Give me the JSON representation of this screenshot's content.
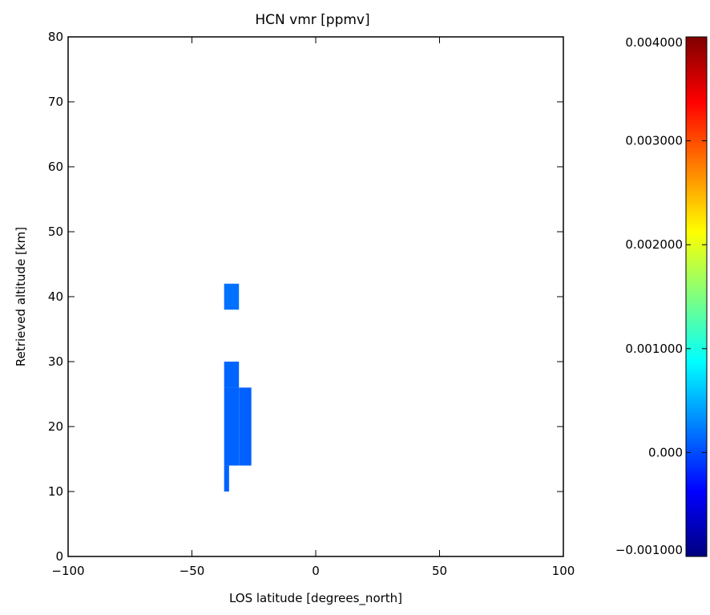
{
  "chart_data": {
    "type": "heatmap",
    "title": "HCN vmr [ppmv]",
    "xlabel": "LOS latitude [degrees_north]",
    "ylabel": "Retrieved altitude [km]",
    "xlim": [
      -100,
      100
    ],
    "ylim": [
      0,
      80
    ],
    "xticks": [
      -100,
      -50,
      0,
      50,
      100
    ],
    "xtick_labels": [
      "−100",
      "−50",
      "0",
      "50",
      "100"
    ],
    "yticks": [
      0,
      10,
      20,
      30,
      40,
      50,
      60,
      70,
      80
    ],
    "ytick_labels": [
      "0",
      "10",
      "20",
      "30",
      "40",
      "50",
      "60",
      "70",
      "80"
    ],
    "grid": false,
    "cells": [
      {
        "x0": -37,
        "x1": -31,
        "y0": 38,
        "y1": 42,
        "value": 0.00018
      },
      {
        "x0": -37,
        "x1": -31,
        "y0": 26,
        "y1": 30,
        "value": 0.00012
      },
      {
        "x0": -37,
        "x1": -31,
        "y0": 14,
        "y1": 26,
        "value": 0.00011
      },
      {
        "x0": -31,
        "x1": -26,
        "y0": 14,
        "y1": 26,
        "value": 0.0001
      },
      {
        "x0": -37,
        "x1": -35,
        "y0": 10,
        "y1": 14,
        "value": 0.00011
      }
    ],
    "colorbar": {
      "min": -0.001,
      "max": 0.004,
      "ticks": [
        -0.001,
        0.0,
        0.001,
        0.002,
        0.003,
        0.004
      ],
      "tick_labels": [
        "−0.001000",
        "0.000",
        "0.001000",
        "0.002000",
        "0.003000",
        "0.004000"
      ],
      "colormap": [
        "#00007f",
        "#0000ff",
        "#007fff",
        "#00ffff",
        "#7fff7f",
        "#ffff00",
        "#ff7f00",
        "#ff0000",
        "#7f0000"
      ]
    }
  }
}
